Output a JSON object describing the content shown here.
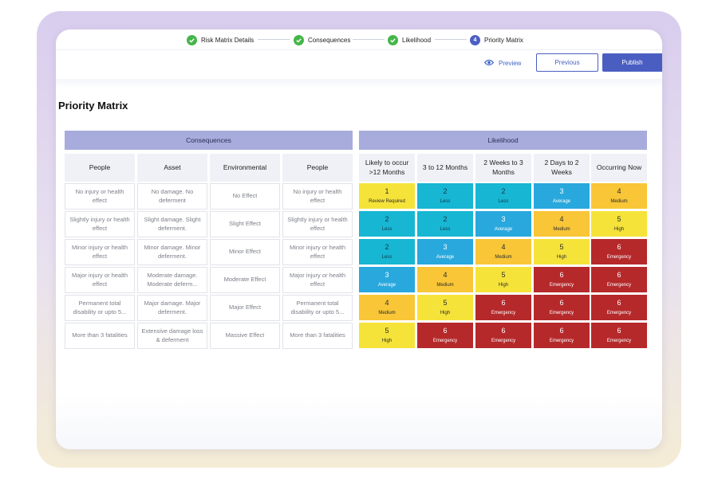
{
  "stepper": [
    {
      "label": "Risk Matrix Details",
      "state": "done"
    },
    {
      "label": "Consequences",
      "state": "done"
    },
    {
      "label": "Likelihood",
      "state": "done"
    },
    {
      "label": "Priority Matrix",
      "state": "current",
      "number": "4"
    }
  ],
  "actions": {
    "preview": "Preview",
    "previous": "Previous",
    "publish": "Publish"
  },
  "page_title": "Priority Matrix",
  "consequences": {
    "title": "Consequences",
    "headers": [
      "People",
      "Asset",
      "Environmental",
      "People"
    ],
    "rows": [
      [
        "No injury or health effect",
        "No damage. No deferment",
        "No Effect",
        "No injury or health effect"
      ],
      [
        "Slightly injury or health effect",
        "Slight damage. Slight deferment.",
        "Slight Effect",
        "Slightly injury or health effect"
      ],
      [
        "Minor injury or health effect",
        "Minor damage. Minor deferment.",
        "Minor Effect",
        "Minor injury or health effect"
      ],
      [
        "Major injury or health effect",
        "Moderate damage. Moderate deferm...",
        "Moderate Effect",
        "Major injury or health effect"
      ],
      [
        "Permanent total disability or upto 5...",
        "Major damage. Major deferment.",
        "Major Effect",
        "Permanent total disability or upto 5..."
      ],
      [
        "More than 3 fatalities",
        "Extensive damage loss & deferment",
        "Massive Effect",
        "More than 3 fatalities"
      ]
    ]
  },
  "likelihood": {
    "title": "Likelihood",
    "headers": [
      "Likely to occur >12 Months",
      "3 to 12 Months",
      "2 Weeks to 3 Months",
      "2 Days to 2 Weeks",
      "Occurring Now"
    ],
    "rows": [
      [
        {
          "n": "1",
          "t": "Review Required"
        },
        {
          "n": "2",
          "t": "Less"
        },
        {
          "n": "2",
          "t": "Less"
        },
        {
          "n": "3",
          "t": "Average"
        },
        {
          "n": "4",
          "t": "Medium"
        }
      ],
      [
        {
          "n": "2",
          "t": "Less"
        },
        {
          "n": "2",
          "t": "Less"
        },
        {
          "n": "3",
          "t": "Average"
        },
        {
          "n": "4",
          "t": "Medium"
        },
        {
          "n": "5",
          "t": "High"
        }
      ],
      [
        {
          "n": "2",
          "t": "Less"
        },
        {
          "n": "3",
          "t": "Average"
        },
        {
          "n": "4",
          "t": "Medium"
        },
        {
          "n": "5",
          "t": "High"
        },
        {
          "n": "6",
          "t": "Emergency"
        }
      ],
      [
        {
          "n": "3",
          "t": "Average"
        },
        {
          "n": "4",
          "t": "Medium"
        },
        {
          "n": "5",
          "t": "High"
        },
        {
          "n": "6",
          "t": "Emergency"
        },
        {
          "n": "6",
          "t": "Emergency"
        }
      ],
      [
        {
          "n": "4",
          "t": "Medium"
        },
        {
          "n": "5",
          "t": "High"
        },
        {
          "n": "6",
          "t": "Emergency"
        },
        {
          "n": "6",
          "t": "Emergency"
        },
        {
          "n": "6",
          "t": "Emergency"
        }
      ],
      [
        {
          "n": "5",
          "t": "High"
        },
        {
          "n": "6",
          "t": "Emergency"
        },
        {
          "n": "6",
          "t": "Emergency"
        },
        {
          "n": "6",
          "t": "Emergency"
        },
        {
          "n": "6",
          "t": "Emergency"
        }
      ]
    ]
  },
  "level_colors": {
    "1": {
      "bg": "#f6e33a",
      "fg": "#2b2b2b"
    },
    "2": {
      "bg": "#17b6d3",
      "fg": "#12384a"
    },
    "3": {
      "bg": "#29a8dd",
      "fg": "#ffffff"
    },
    "4": {
      "bg": "#f8c637",
      "fg": "#2b2b2b"
    },
    "5": {
      "bg": "#f6e33a",
      "fg": "#2b2b2b"
    },
    "6": {
      "bg": "#b5292b",
      "fg": "#ffffff"
    }
  },
  "colors": {
    "accent": "#4a5ec2",
    "band": "#a7acdc",
    "check": "#45b649"
  }
}
